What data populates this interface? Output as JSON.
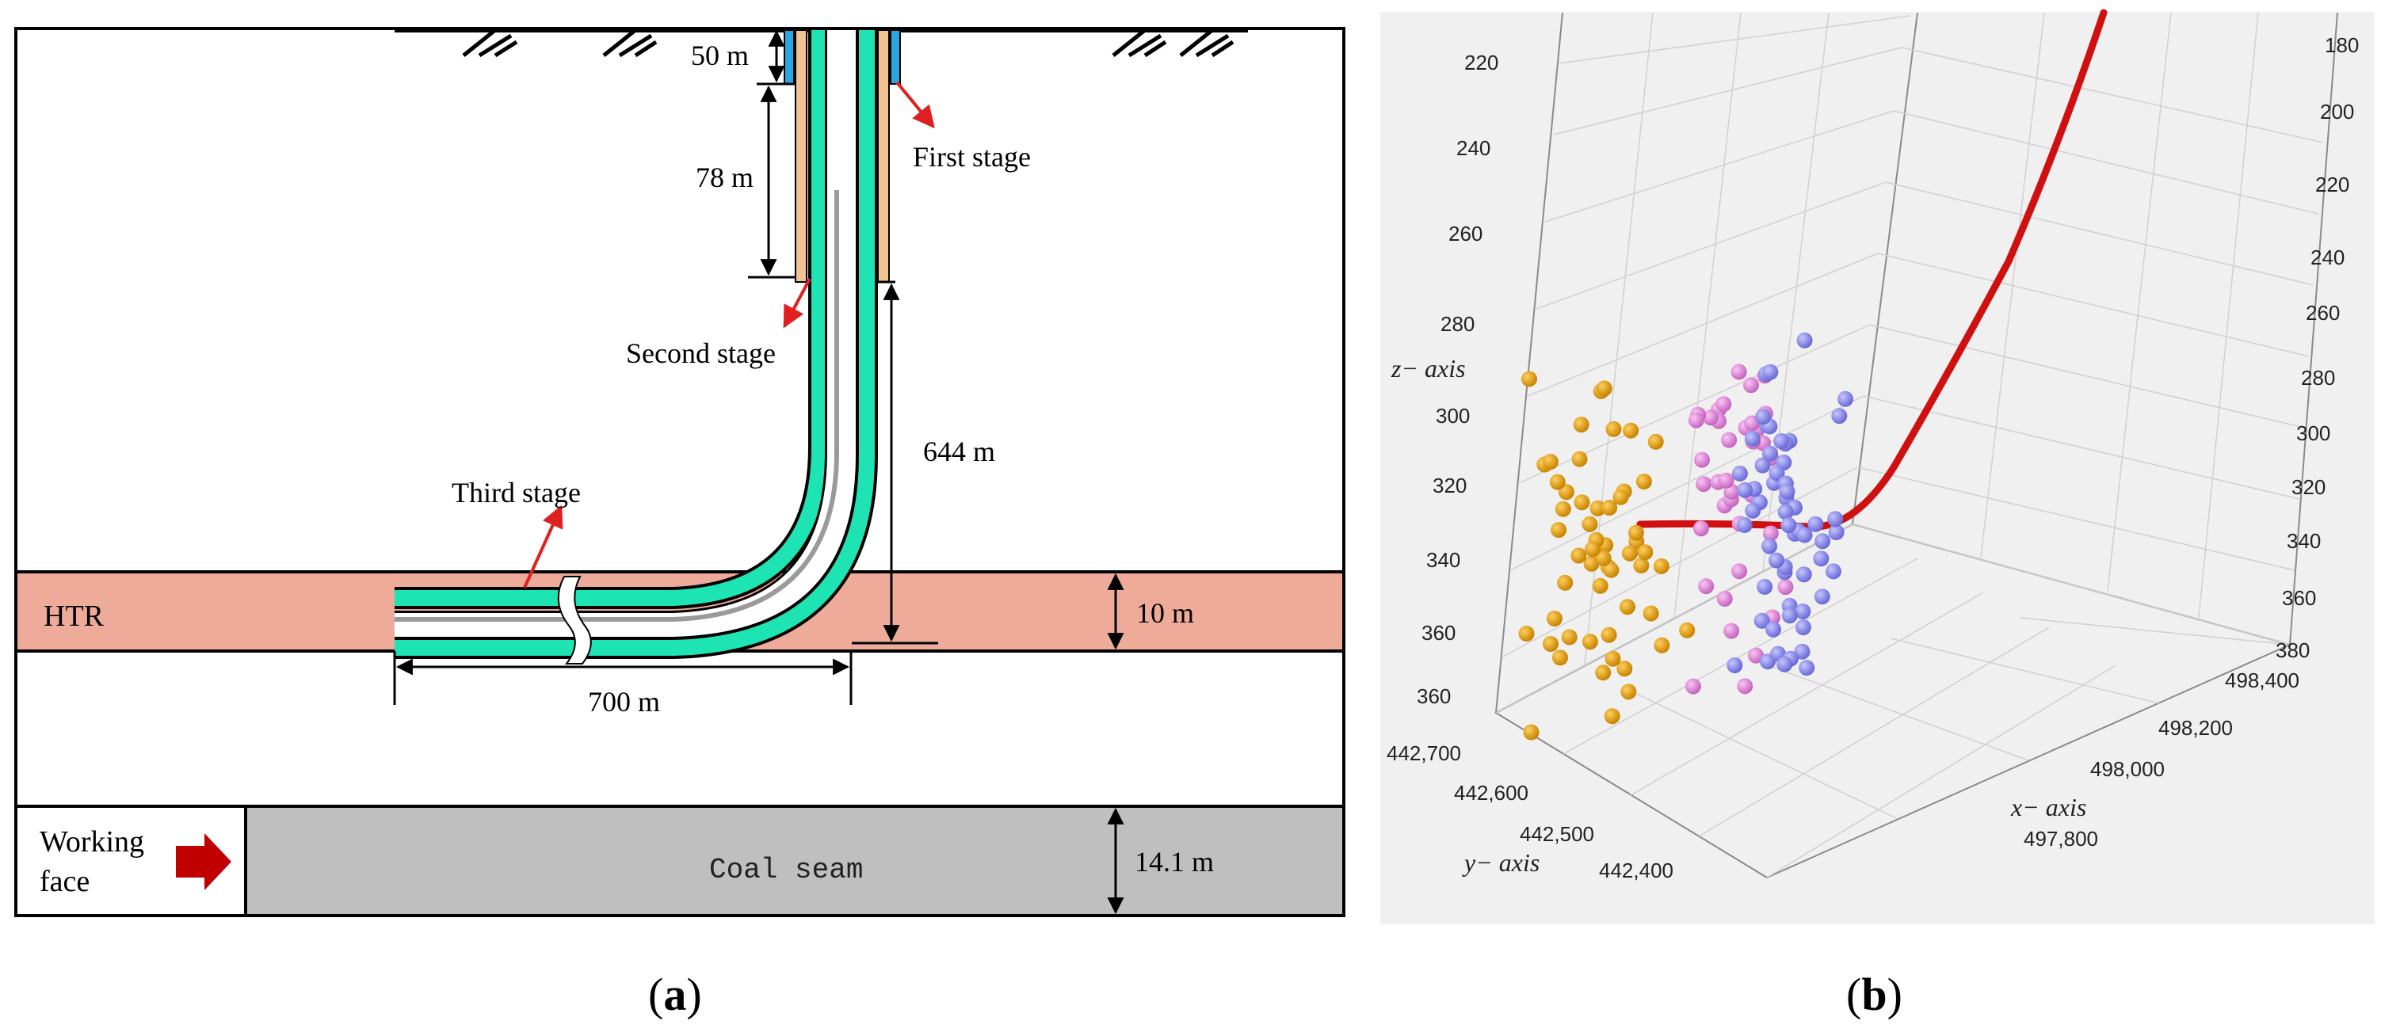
{
  "panel_a": {
    "label_letter": "a",
    "depth_first": "50 m",
    "depth_second": "78 m",
    "depth_third": "644 m",
    "first_stage": "First stage",
    "second_stage": "Second stage",
    "third_stage": "Third stage",
    "htr": "HTR",
    "htr_thickness": "10 m",
    "horizontal_length": "700 m",
    "working_face_line1": "Working",
    "working_face_line2": "face",
    "coal_seam": "Coal seam",
    "coal_thickness": "14.1 m",
    "colors": {
      "htr": "#eeab9a",
      "coal": "#bfbfbf",
      "casing_green": "#1ee3b2",
      "casing_tan": "#f2c494",
      "casing_blue": "#2aa7e0",
      "arrow_red": "#e02020",
      "working_arrow": "#c00000"
    }
  },
  "panel_b": {
    "label_letter": "b",
    "z_axis_label": "z− axis",
    "y_axis_label": "y− axis",
    "x_axis_label": "x− axis",
    "z_ticks_left": [
      "220",
      "240",
      "260",
      "280",
      "300",
      "320",
      "340",
      "360",
      "360"
    ],
    "z_ticks_right": [
      "180",
      "200",
      "220",
      "240",
      "260",
      "280",
      "300",
      "320",
      "340",
      "360",
      "380"
    ],
    "y_ticks": [
      "442,700",
      "442,600",
      "442,500",
      "442,400"
    ],
    "x_ticks": [
      "498,400",
      "498,200",
      "498,000",
      "497,800"
    ],
    "colors": {
      "background": "#f0f0f0",
      "trajectory": "#d01010",
      "series_orange": "#e3a010",
      "series_pink": "#e88ae0",
      "series_blue": "#8f8ff0"
    }
  }
}
